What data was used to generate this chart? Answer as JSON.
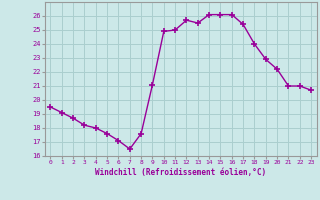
{
  "x": [
    0,
    1,
    2,
    3,
    4,
    5,
    6,
    7,
    8,
    9,
    10,
    11,
    12,
    13,
    14,
    15,
    16,
    17,
    18,
    19,
    20,
    21,
    22,
    23
  ],
  "y": [
    19.5,
    19.1,
    18.7,
    18.2,
    18.0,
    17.6,
    17.1,
    16.5,
    17.6,
    21.1,
    24.9,
    25.0,
    25.7,
    25.5,
    26.1,
    26.1,
    26.1,
    25.4,
    24.0,
    22.9,
    22.2,
    21.0,
    21.0,
    20.7
  ],
  "line_color": "#990099",
  "marker": "+",
  "marker_size": 4,
  "bg_color": "#cce8e8",
  "grid_color": "#aacece",
  "xlabel": "Windchill (Refroidissement éolien,°C)",
  "xlim": [
    -0.5,
    23.5
  ],
  "ylim": [
    16,
    27
  ],
  "yticks": [
    16,
    17,
    18,
    19,
    20,
    21,
    22,
    23,
    24,
    25,
    26
  ],
  "xticks": [
    0,
    1,
    2,
    3,
    4,
    5,
    6,
    7,
    8,
    9,
    10,
    11,
    12,
    13,
    14,
    15,
    16,
    17,
    18,
    19,
    20,
    21,
    22,
    23
  ],
  "tick_color": "#990099",
  "label_color": "#990099",
  "spine_color": "#999999"
}
